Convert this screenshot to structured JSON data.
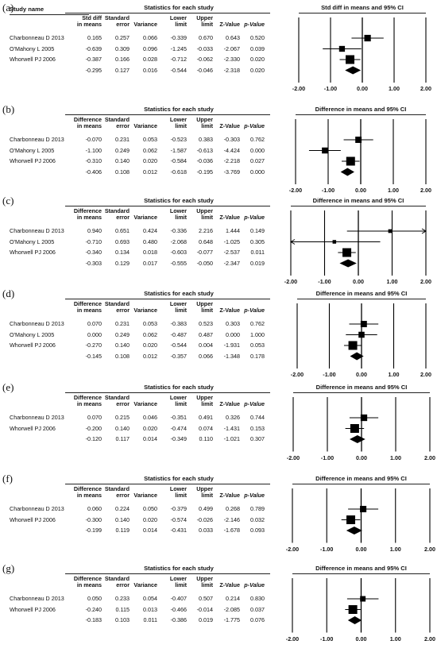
{
  "headers": {
    "study_name": "Study name",
    "stats_title": "Statistics for each study",
    "std_diff": [
      "Std diff",
      "in means"
    ],
    "difference": [
      "Difference",
      "in means"
    ],
    "standard_error": [
      "Standard",
      "error"
    ],
    "variance": "Variance",
    "lower_limit": [
      "Lower",
      "limit"
    ],
    "upper_limit": [
      "Upper",
      "limit"
    ],
    "z_value": "Z-Value",
    "p_value": "p-Value"
  },
  "axis_ticks": [
    "-2.00",
    "-1.00",
    "0.00",
    "1.00",
    "2.00"
  ],
  "chart_data": [
    {
      "type": "forest",
      "label": "(a)",
      "effect_header": "std_diff",
      "title": "Std diff in means and 95% CI",
      "show_study_name": true,
      "xlim": [
        -2,
        2
      ],
      "studies": [
        {
          "name": "Charbonneau D 2013",
          "effect": "0.165",
          "se": "0.257",
          "variance": "0.066",
          "lower": "-0.339",
          "upper": "0.670",
          "z": "0.643",
          "p": "0.520"
        },
        {
          "name": "O'Mahony L 2005",
          "effect": "-0.639",
          "se": "0.309",
          "variance": "0.096",
          "lower": "-1.245",
          "upper": "-0.033",
          "z": "-2.067",
          "p": "0.039"
        },
        {
          "name": "Whorwell PJ 2006",
          "effect": "-0.387",
          "se": "0.166",
          "variance": "0.028",
          "lower": "-0.712",
          "upper": "-0.062",
          "z": "-2.330",
          "p": "0.020"
        }
      ],
      "summary": {
        "effect": "-0.295",
        "se": "0.127",
        "variance": "0.016",
        "lower": "-0.544",
        "upper": "-0.046",
        "z": "-2.318",
        "p": "0.020"
      }
    },
    {
      "type": "forest",
      "label": "(b)",
      "effect_header": "difference",
      "title": "Difference in means and 95% CI",
      "show_study_name": false,
      "xlim": [
        -2,
        2
      ],
      "studies": [
        {
          "name": "Charbonneau D 2013",
          "effect": "-0.070",
          "se": "0.231",
          "variance": "0.053",
          "lower": "-0.523",
          "upper": "0.383",
          "z": "-0.303",
          "p": "0.762"
        },
        {
          "name": "O'Mahony L 2005",
          "effect": "-1.100",
          "se": "0.249",
          "variance": "0.062",
          "lower": "-1.587",
          "upper": "-0.613",
          "z": "-4.424",
          "p": "0.000"
        },
        {
          "name": "Whorwell PJ 2006",
          "effect": "-0.310",
          "se": "0.140",
          "variance": "0.020",
          "lower": "-0.584",
          "upper": "-0.036",
          "z": "-2.218",
          "p": "0.027"
        }
      ],
      "summary": {
        "effect": "-0.406",
        "se": "0.108",
        "variance": "0.012",
        "lower": "-0.618",
        "upper": "-0.195",
        "z": "-3.769",
        "p": "0.000"
      }
    },
    {
      "type": "forest",
      "label": "(c)",
      "effect_header": "difference",
      "title": "Difference in means and 95% CI",
      "show_study_name": false,
      "xlim": [
        -2,
        2
      ],
      "studies": [
        {
          "name": "Charbonneau D 2013",
          "effect": "0.940",
          "se": "0.651",
          "variance": "0.424",
          "lower": "-0.336",
          "upper": "2.216",
          "z": "1.444",
          "p": "0.149"
        },
        {
          "name": "O'Mahony L 2005",
          "effect": "-0.710",
          "se": "0.693",
          "variance": "0.480",
          "lower": "-2.068",
          "upper": "0.648",
          "z": "-1.025",
          "p": "0.305"
        },
        {
          "name": "Whorwell PJ 2006",
          "effect": "-0.340",
          "se": "0.134",
          "variance": "0.018",
          "lower": "-0.603",
          "upper": "-0.077",
          "z": "-2.537",
          "p": "0.011"
        }
      ],
      "summary": {
        "effect": "-0.303",
        "se": "0.129",
        "variance": "0.017",
        "lower": "-0.555",
        "upper": "-0.050",
        "z": "-2.347",
        "p": "0.019"
      }
    },
    {
      "type": "forest",
      "label": "(d)",
      "effect_header": "difference",
      "title": "Difference in means and 95% CI",
      "show_study_name": false,
      "xlim": [
        -2,
        2
      ],
      "studies": [
        {
          "name": "Charbonneau D 2013",
          "effect": "0.070",
          "se": "0.231",
          "variance": "0.053",
          "lower": "-0.383",
          "upper": "0.523",
          "z": "0.303",
          "p": "0.762"
        },
        {
          "name": "O'Mahony L 2005",
          "effect": "0.000",
          "se": "0.249",
          "variance": "0.062",
          "lower": "-0.487",
          "upper": "0.487",
          "z": "0.000",
          "p": "1.000"
        },
        {
          "name": "Whorwell PJ 2006",
          "effect": "-0.270",
          "se": "0.140",
          "variance": "0.020",
          "lower": "-0.544",
          "upper": "0.004",
          "z": "-1.931",
          "p": "0.053"
        }
      ],
      "summary": {
        "effect": "-0.145",
        "se": "0.108",
        "variance": "0.012",
        "lower": "-0.357",
        "upper": "0.066",
        "z": "-1.348",
        "p": "0.178"
      }
    },
    {
      "type": "forest",
      "label": "(e)",
      "effect_header": "difference",
      "title": "Difference in means and 95% CI",
      "show_study_name": false,
      "xlim": [
        -2,
        2
      ],
      "studies": [
        {
          "name": "Charbonneau D 2013",
          "effect": "0.070",
          "se": "0.215",
          "variance": "0.046",
          "lower": "-0.351",
          "upper": "0.491",
          "z": "0.326",
          "p": "0.744"
        },
        {
          "name": "Whorwell PJ 2006",
          "effect": "-0.200",
          "se": "0.140",
          "variance": "0.020",
          "lower": "-0.474",
          "upper": "0.074",
          "z": "-1.431",
          "p": "0.153"
        }
      ],
      "summary": {
        "effect": "-0.120",
        "se": "0.117",
        "variance": "0.014",
        "lower": "-0.349",
        "upper": "0.110",
        "z": "-1.021",
        "p": "0.307"
      }
    },
    {
      "type": "forest",
      "label": "(f)",
      "effect_header": "difference",
      "title": "Difference in means and 95% CI",
      "show_study_name": false,
      "xlim": [
        -2,
        2
      ],
      "studies": [
        {
          "name": "Charbonneau D 2013",
          "effect": "0.060",
          "se": "0.224",
          "variance": "0.050",
          "lower": "-0.379",
          "upper": "0.499",
          "z": "0.268",
          "p": "0.789"
        },
        {
          "name": "Whorwell PJ 2006",
          "effect": "-0.300",
          "se": "0.140",
          "variance": "0.020",
          "lower": "-0.574",
          "upper": "-0.026",
          "z": "-2.146",
          "p": "0.032"
        }
      ],
      "summary": {
        "effect": "-0.199",
        "se": "0.119",
        "variance": "0.014",
        "lower": "-0.431",
        "upper": "0.033",
        "z": "-1.678",
        "p": "0.093"
      }
    },
    {
      "type": "forest",
      "label": "(g)",
      "effect_header": "difference",
      "title": "Difference in means and 95% CI",
      "show_study_name": false,
      "xlim": [
        -2,
        2
      ],
      "studies": [
        {
          "name": "Charbonneau D 2013",
          "effect": "0.050",
          "se": "0.233",
          "variance": "0.054",
          "lower": "-0.407",
          "upper": "0.507",
          "z": "0.214",
          "p": "0.830"
        },
        {
          "name": "Whorwell PJ 2006",
          "effect": "-0.240",
          "se": "0.115",
          "variance": "0.013",
          "lower": "-0.466",
          "upper": "-0.014",
          "z": "-2.085",
          "p": "0.037"
        }
      ],
      "summary": {
        "effect": "-0.183",
        "se": "0.103",
        "variance": "0.011",
        "lower": "-0.386",
        "upper": "0.019",
        "z": "-1.775",
        "p": "0.076"
      }
    }
  ]
}
